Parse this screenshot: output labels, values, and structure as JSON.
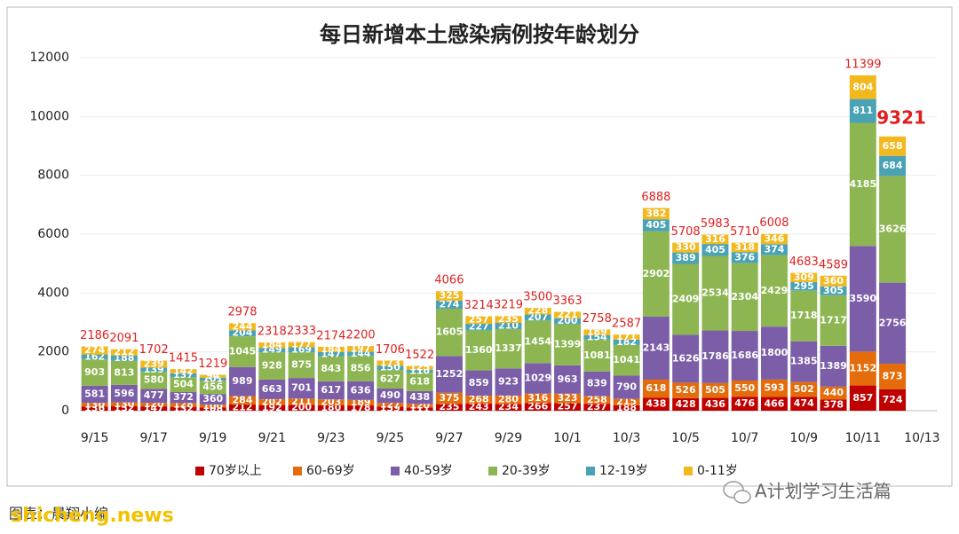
{
  "chart_data": {
    "type": "stacked_bar",
    "title": "每日新增本土感染病例按年龄划分",
    "categories": [
      "9/15",
      null,
      "9/17",
      null,
      "9/19",
      null,
      "9/21",
      null,
      "9/23",
      null,
      "9/25",
      null,
      "9/27",
      null,
      "9/29",
      null,
      "10/1",
      null,
      "10/3",
      null,
      "10/5",
      null,
      "10/7",
      null,
      "10/9",
      null,
      "10/11",
      null,
      "10/13"
    ],
    "series": [
      {
        "name": "70岁以上",
        "color": "#c00000",
        "values": [
          136,
          152,
          147,
          132,
          108,
          212,
          192,
          200,
          180,
          178,
          139,
          111,
          235,
          243,
          234,
          266,
          257,
          237,
          188,
          438,
          428,
          436,
          476,
          466,
          474,
          378,
          857,
          724,
          null
        ]
      },
      {
        "name": "60-69岁",
        "color": "#e46c0a",
        "values": [
          130,
          130,
          120,
          128,
          100,
          284,
          202,
          211,
          203,
          189,
          127,
          120,
          375,
          268,
          280,
          316,
          323,
          258,
          215,
          618,
          526,
          505,
          550,
          593,
          502,
          440,
          1152,
          873,
          null
        ]
      },
      {
        "name": "40-59岁",
        "color": "#7b5ea7",
        "values": [
          581,
          596,
          477,
          372,
          360,
          989,
          663,
          701,
          617,
          636,
          490,
          438,
          1252,
          859,
          923,
          1029,
          963,
          839,
          790,
          2143,
          1626,
          1786,
          1686,
          1800,
          1385,
          1389,
          3590,
          2756,
          null
        ]
      },
      {
        "name": "20-39岁",
        "color": "#8db653",
        "values": [
          903,
          813,
          580,
          504,
          456,
          1045,
          928,
          875,
          843,
          856,
          627,
          618,
          1605,
          1360,
          1337,
          1454,
          1399,
          1081,
          1041,
          2902,
          2409,
          2534,
          2304,
          2429,
          1718,
          1717,
          4185,
          3626,
          null
        ]
      },
      {
        "name": "12-19岁",
        "color": "#4aa3b5",
        "values": [
          162,
          188,
          139,
          137,
          101,
          204,
          149,
          169,
          147,
          144,
          150,
          110,
          274,
          227,
          210,
          207,
          200,
          154,
          182,
          405,
          389,
          405,
          376,
          374,
          295,
          305,
          811,
          684,
          null
        ]
      },
      {
        "name": "0-11岁",
        "color": "#f2b81e",
        "values": [
          274,
          212,
          239,
          142,
          94,
          244,
          184,
          177,
          184,
          197,
          173,
          125,
          325,
          257,
          235,
          228,
          221,
          189,
          171,
          382,
          330,
          316,
          318,
          346,
          309,
          360,
          804,
          658,
          null
        ]
      },
      {
        "name": null
      }
    ],
    "totals": [
      2186,
      2091,
      1702,
      1415,
      1219,
      2978,
      2318,
      2333,
      2174,
      2200,
      1706,
      1522,
      4066,
      3214,
      3219,
      3500,
      3363,
      2758,
      2587,
      6888,
      5708,
      5983,
      5710,
      6008,
      4683,
      4589,
      11399,
      9321,
      null
    ],
    "ylim": [
      0,
      12000
    ],
    "yticks": [
      0,
      2000,
      4000,
      6000,
      8000,
      10000,
      12000
    ],
    "grid": true,
    "legend": "bottom"
  },
  "footer": {
    "source": "图表：晨翔小编",
    "account": "A计划学习生活篇",
    "watermark": "shicheng.news"
  }
}
